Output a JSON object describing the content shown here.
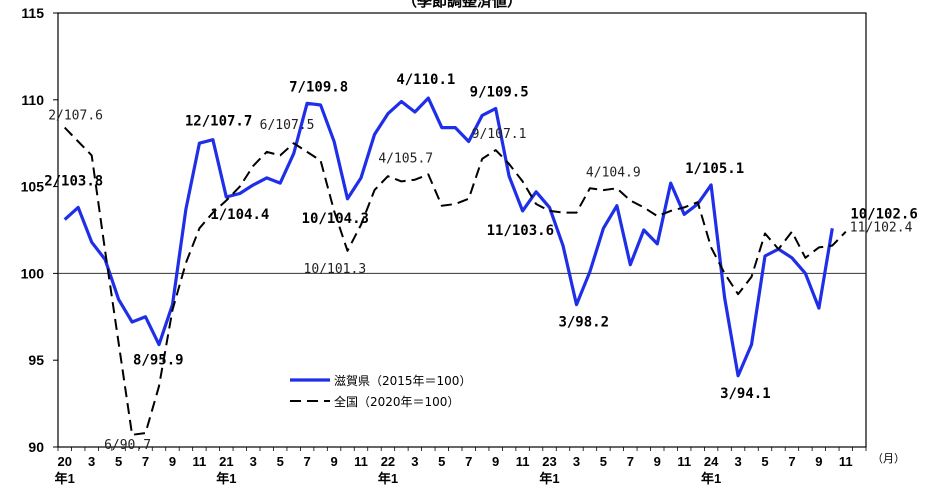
{
  "subtitle": "（季節調整済値）",
  "chart_data": {
    "type": "line",
    "unit_suffix": "（月）",
    "ylim": [
      90,
      115
    ],
    "yticks": [
      90,
      95,
      100,
      105,
      110,
      115
    ],
    "grid": false,
    "reference_line": 100,
    "x_tick_labels": [
      {
        "i": 0,
        "month": "20",
        "year": "年1"
      },
      {
        "i": 2,
        "month": "3"
      },
      {
        "i": 4,
        "month": "5"
      },
      {
        "i": 6,
        "month": "7"
      },
      {
        "i": 8,
        "month": "9"
      },
      {
        "i": 10,
        "month": "11"
      },
      {
        "i": 12,
        "month": "21",
        "year": "年1"
      },
      {
        "i": 14,
        "month": "3"
      },
      {
        "i": 16,
        "month": "5"
      },
      {
        "i": 18,
        "month": "7"
      },
      {
        "i": 20,
        "month": "9"
      },
      {
        "i": 22,
        "month": "11"
      },
      {
        "i": 24,
        "month": "22",
        "year": "年1"
      },
      {
        "i": 26,
        "month": "3"
      },
      {
        "i": 28,
        "month": "5"
      },
      {
        "i": 30,
        "month": "7"
      },
      {
        "i": 32,
        "month": "9"
      },
      {
        "i": 34,
        "month": "11"
      },
      {
        "i": 36,
        "month": "23",
        "year": "年1"
      },
      {
        "i": 38,
        "month": "3"
      },
      {
        "i": 40,
        "month": "5"
      },
      {
        "i": 42,
        "month": "7"
      },
      {
        "i": 44,
        "month": "9"
      },
      {
        "i": 46,
        "month": "11"
      },
      {
        "i": 48,
        "month": "24",
        "year": "年1"
      },
      {
        "i": 50,
        "month": "3"
      },
      {
        "i": 52,
        "month": "5"
      },
      {
        "i": 54,
        "month": "7"
      },
      {
        "i": 56,
        "month": "9"
      },
      {
        "i": 58,
        "month": "11"
      }
    ],
    "series": [
      {
        "name": "滋賀県（2015年＝100）",
        "color": "#1f2fe8",
        "style": "solid",
        "values": [
          103.1,
          103.8,
          101.8,
          100.8,
          98.5,
          97.2,
          97.5,
          95.9,
          98.2,
          103.7,
          107.5,
          107.7,
          104.4,
          104.6,
          105.1,
          105.5,
          105.2,
          106.9,
          109.8,
          109.7,
          107.6,
          104.3,
          105.5,
          108.0,
          109.2,
          109.9,
          109.3,
          110.1,
          108.4,
          108.4,
          107.6,
          109.1,
          109.5,
          105.6,
          103.6,
          104.7,
          103.8,
          101.6,
          98.2,
          100.1,
          102.6,
          103.9,
          100.5,
          102.5,
          101.7,
          105.2,
          103.4,
          104.0,
          105.1,
          98.6,
          94.1,
          95.9,
          101.0,
          101.4,
          100.9,
          100.0,
          98.0,
          102.6
        ]
      },
      {
        "name": "全国（2020年＝100）",
        "color": "#000000",
        "style": "dashed",
        "values": [
          108.4,
          107.6,
          106.8,
          101.3,
          96.0,
          90.7,
          90.8,
          93.5,
          97.9,
          100.6,
          102.6,
          103.5,
          104.2,
          105.0,
          106.2,
          107.0,
          106.8,
          107.5,
          107.0,
          106.5,
          103.6,
          101.3,
          102.8,
          104.8,
          105.6,
          105.3,
          105.4,
          105.7,
          103.9,
          104.0,
          104.3,
          106.6,
          107.1,
          106.3,
          105.3,
          104.0,
          103.6,
          103.5,
          103.5,
          104.9,
          104.8,
          104.9,
          104.2,
          103.8,
          103.3,
          103.6,
          103.8,
          104.1,
          101.5,
          100.0,
          98.8,
          99.8,
          102.3,
          101.4,
          102.4,
          100.9,
          101.5,
          101.6,
          102.4
        ]
      }
    ],
    "annotations_main": [
      {
        "i": 1,
        "label": "2/103.8",
        "dx": -34,
        "dy": -22
      },
      {
        "i": 7,
        "label": "8/95.9",
        "dx": -26,
        "dy": 20
      },
      {
        "i": 11,
        "label": "12/107.7",
        "dx": -28,
        "dy": -14
      },
      {
        "i": 12,
        "label": "1/104.4",
        "dx": -16,
        "dy": 22
      },
      {
        "i": 18,
        "label": "7/109.8",
        "dx": -18,
        "dy": -12
      },
      {
        "i": 21,
        "label": "10/104.3",
        "dx": -46,
        "dy": 24
      },
      {
        "i": 27,
        "label": "4/110.1",
        "dx": -32,
        "dy": -14
      },
      {
        "i": 32,
        "label": "9/109.5",
        "dx": -26,
        "dy": -12
      },
      {
        "i": 34,
        "label": "11/103.6",
        "dx": -36,
        "dy": 24
      },
      {
        "i": 38,
        "label": "3/98.2",
        "dx": -18,
        "dy": 22
      },
      {
        "i": 48,
        "label": "1/105.1",
        "dx": -26,
        "dy": -12
      },
      {
        "i": 50,
        "label": "3/94.1",
        "dx": -18,
        "dy": 22
      },
      {
        "i": 57,
        "label": "10/102.6",
        "dx": 18,
        "dy": -10
      }
    ],
    "annotations_national": [
      {
        "i": 1,
        "label": "2/107.6",
        "dx": -30,
        "dy": -22
      },
      {
        "i": 5,
        "label": "6/90.7",
        "dx": -28,
        "dy": 14
      },
      {
        "i": 17,
        "label": "6/107.5",
        "dx": -34,
        "dy": -14
      },
      {
        "i": 21,
        "label": "10/101.3",
        "dx": -44,
        "dy": 22
      },
      {
        "i": 27,
        "label": "4/105.7",
        "dx": -50,
        "dy": -12
      },
      {
        "i": 32,
        "label": "9/107.1",
        "dx": -24,
        "dy": -12
      },
      {
        "i": 39,
        "label": "4/104.9",
        "dx": -4,
        "dy": -12
      },
      {
        "i": 58,
        "label": "11/102.4",
        "dx": 4,
        "dy": 0
      }
    ]
  }
}
